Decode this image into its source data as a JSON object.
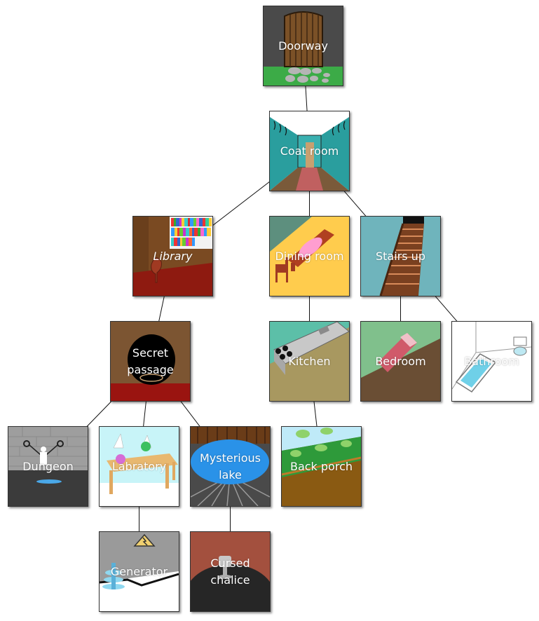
{
  "rooms": {
    "doorway": "Doorway",
    "coat_room": "Coat room",
    "library": "Library",
    "dining_room": "Dining room",
    "stairs_up": "Stairs up",
    "secret_passage": "Secret\npassage",
    "kitchen": "Kitchen",
    "bedroom": "Bedroom",
    "bathroom": "Bathroom",
    "dungeon": "Dungeon",
    "labratory": "Labratory",
    "mysterious_lake": "Mysterious\nlake",
    "back_porch": "Back porch",
    "generator": "Generator",
    "cursed_chalice": "Cursed\nchalice"
  },
  "edges": [
    [
      "doorway",
      "coat_room"
    ],
    [
      "coat_room",
      "library"
    ],
    [
      "coat_room",
      "dining_room"
    ],
    [
      "coat_room",
      "stairs_up"
    ],
    [
      "library",
      "secret_passage"
    ],
    [
      "dining_room",
      "kitchen"
    ],
    [
      "stairs_up",
      "bedroom"
    ],
    [
      "stairs_up",
      "bathroom"
    ],
    [
      "secret_passage",
      "dungeon"
    ],
    [
      "secret_passage",
      "labratory"
    ],
    [
      "secret_passage",
      "mysterious_lake"
    ],
    [
      "kitchen",
      "back_porch"
    ],
    [
      "labratory",
      "generator"
    ],
    [
      "mysterious_lake",
      "cursed_chalice"
    ]
  ]
}
